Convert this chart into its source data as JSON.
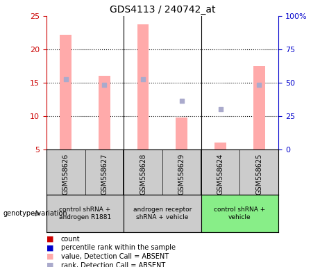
{
  "title": "GDS4113 / 240742_at",
  "samples": [
    "GSM558626",
    "GSM558627",
    "GSM558628",
    "GSM558629",
    "GSM558624",
    "GSM558625"
  ],
  "bar_values_absent": [
    22.2,
    16.0,
    23.8,
    9.8,
    6.0,
    17.5
  ],
  "rank_absent_left": [
    15.5,
    14.7,
    15.5,
    12.3,
    11.0,
    14.7
  ],
  "ylim_left": [
    5,
    25
  ],
  "ylim_right": [
    0,
    100
  ],
  "yticks_left": [
    5,
    10,
    15,
    20,
    25
  ],
  "yticks_right": [
    0,
    25,
    50,
    75,
    100
  ],
  "ytick_labels_right": [
    "0",
    "25",
    "50",
    "75",
    "100%"
  ],
  "groups": [
    {
      "label": "control shRNA +\nandrogen R1881",
      "indices": [
        0,
        1
      ],
      "color": "#cccccc"
    },
    {
      "label": "androgen receptor\nshRNA + vehicle",
      "indices": [
        2,
        3
      ],
      "color": "#cccccc"
    },
    {
      "label": "control shRNA +\nvehicle",
      "indices": [
        4,
        5
      ],
      "color": "#88ee88"
    }
  ],
  "bar_color_absent": "#ffaaaa",
  "rank_dot_color_absent": "#aaaacc",
  "left_axis_color": "#cc0000",
  "right_axis_color": "#0000cc",
  "bg_color": "#ffffff",
  "sample_box_color": "#cccccc",
  "legend_items": [
    {
      "label": "count",
      "color": "#cc0000"
    },
    {
      "label": "percentile rank within the sample",
      "color": "#0000cc"
    },
    {
      "label": "value, Detection Call = ABSENT",
      "color": "#ffaaaa"
    },
    {
      "label": "rank, Detection Call = ABSENT",
      "color": "#aaaacc"
    }
  ],
  "genotype_label": "genotype/variation"
}
